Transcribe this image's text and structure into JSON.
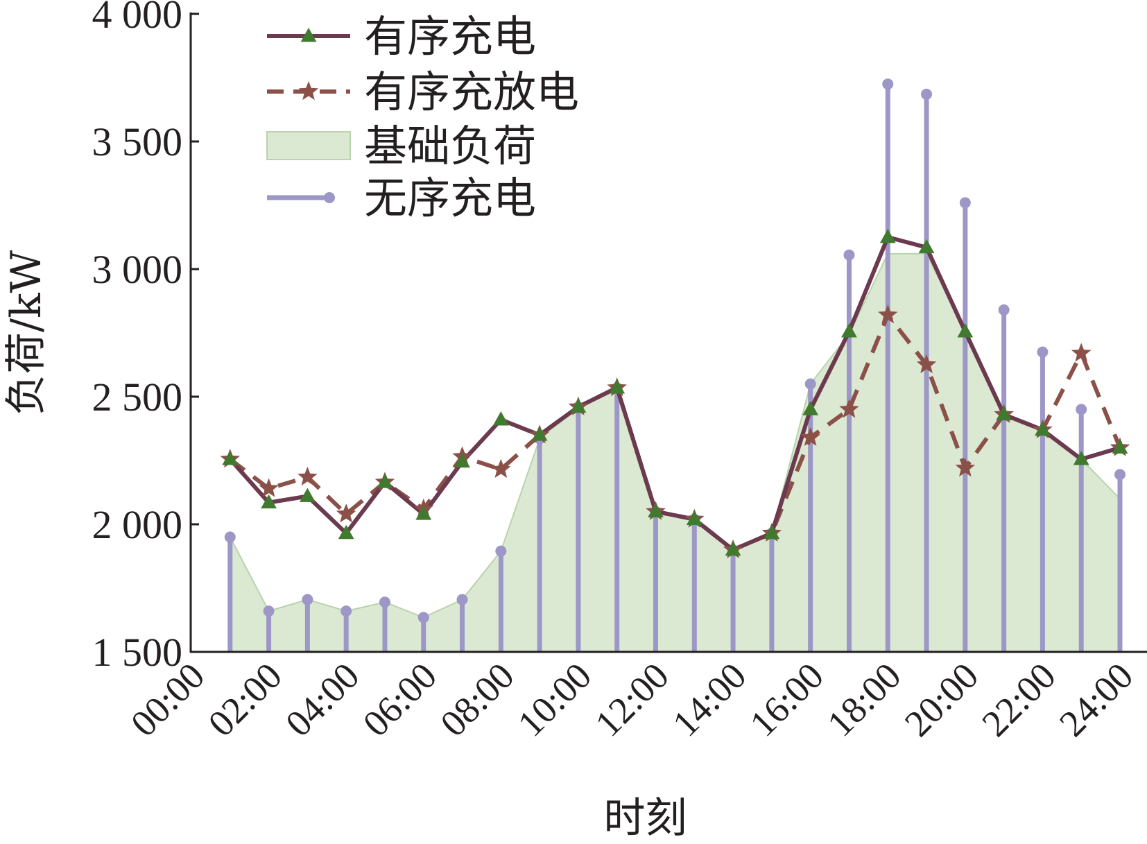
{
  "chart_data": {
    "type": "line",
    "xlabel": "时刻",
    "ylabel": "负荷/kW",
    "ylim": [
      1500,
      4000
    ],
    "yticks": [
      "1 500",
      "2 000",
      "2 500",
      "3 000",
      "3 500",
      "4 000"
    ],
    "ytick_values": [
      1500,
      2000,
      2500,
      3000,
      3500,
      4000
    ],
    "xlim": [
      0,
      24
    ],
    "xticks": [
      "00:00",
      "02:00",
      "04:00",
      "06:00",
      "08:00",
      "10:00",
      "12:00",
      "14:00",
      "16:00",
      "18:00",
      "20:00",
      "22:00",
      "24:00"
    ],
    "x": [
      1,
      2,
      3,
      4,
      5,
      6,
      7,
      8,
      9,
      10,
      11,
      12,
      13,
      14,
      15,
      16,
      17,
      18,
      19,
      20,
      21,
      22,
      23,
      24
    ],
    "legend_position": "top-left",
    "series": [
      {
        "name": "有序充电",
        "style": "solid-triangle",
        "color": "#6b3a4e",
        "marker_color": "#3f7a2e",
        "values": [
          2255,
          2085,
          2110,
          1965,
          2165,
          2040,
          2245,
          2410,
          2350,
          2460,
          2535,
          2050,
          2020,
          1900,
          1965,
          2450,
          2755,
          3125,
          3085,
          2755,
          2430,
          2370,
          2255,
          2300
        ]
      },
      {
        "name": "有序充放电",
        "style": "dashed-star",
        "color": "#8b5149",
        "values": [
          2255,
          2140,
          2185,
          2040,
          2165,
          2060,
          2265,
          2215,
          2350,
          2460,
          2535,
          2050,
          2020,
          1900,
          1965,
          2340,
          2450,
          2820,
          2625,
          2220,
          2430,
          2370,
          2670,
          2300
        ]
      },
      {
        "name": "基础负荷",
        "style": "area",
        "color": "#dbe9d3",
        "values": [
          1950,
          1660,
          1705,
          1660,
          1695,
          1635,
          1705,
          1895,
          2335,
          2460,
          2535,
          2050,
          2020,
          1900,
          1965,
          2550,
          2745,
          3060,
          3060,
          2755,
          2430,
          2370,
          2255,
          2100
        ]
      },
      {
        "name": "无序充电",
        "style": "stem",
        "color": "#9c97c6",
        "values": [
          1950,
          1660,
          1705,
          1660,
          1695,
          1635,
          1705,
          1895,
          2335,
          2460,
          2535,
          2050,
          2020,
          1900,
          1965,
          2550,
          3055,
          3725,
          3685,
          3260,
          2840,
          2675,
          2450,
          2195
        ]
      }
    ]
  }
}
